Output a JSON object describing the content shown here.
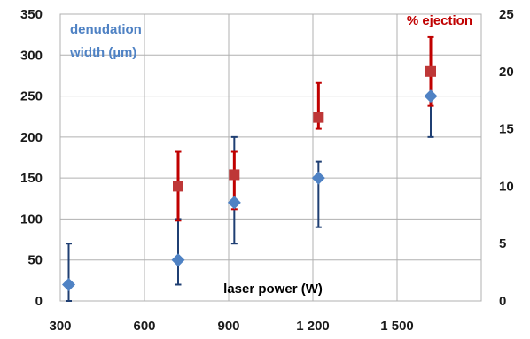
{
  "chart_data": {
    "type": "scatter",
    "xlabel": "laser power (W)",
    "x_ticks": [
      "300",
      "600",
      "900",
      "1 200",
      "1 500"
    ],
    "xlim": [
      300,
      1800
    ],
    "y_left": {
      "lim": [
        0,
        350
      ],
      "ticks": [
        "0",
        "50",
        "100",
        "150",
        "200",
        "250",
        "300",
        "350"
      ]
    },
    "y_right": {
      "lim": [
        0,
        25
      ],
      "ticks": [
        "0",
        "5",
        "10",
        "15",
        "20",
        "25"
      ]
    },
    "grid": true,
    "colors": {
      "denudation": "#4f82c4",
      "denudation_err": "#1f3f73",
      "ejection": "#be3737",
      "ejection_err": "#c00000",
      "grid": "#b0b0b0"
    },
    "series": [
      {
        "name": "denudation width (µm)",
        "label_lines": [
          "denudation",
          "width (µm)"
        ],
        "axis": "left",
        "marker": "diamond",
        "points": [
          {
            "x": 330,
            "y": 20,
            "err_low": 0,
            "err_high": 70
          },
          {
            "x": 720,
            "y": 50,
            "err_low": 20,
            "err_high": 100
          },
          {
            "x": 920,
            "y": 120,
            "err_low": 70,
            "err_high": 200
          },
          {
            "x": 1220,
            "y": 150,
            "err_low": 90,
            "err_high": 170
          },
          {
            "x": 1620,
            "y": 250,
            "err_low": 200,
            "err_high": 250
          }
        ]
      },
      {
        "name": "% ejection",
        "label_lines": [
          "% ejection"
        ],
        "axis": "right",
        "marker": "square",
        "points": [
          {
            "x": 720,
            "y": 10,
            "err_low": 7,
            "err_high": 13
          },
          {
            "x": 920,
            "y": 11,
            "err_low": 8,
            "err_high": 13
          },
          {
            "x": 1220,
            "y": 16,
            "err_low": 15,
            "err_high": 19
          },
          {
            "x": 1620,
            "y": 20,
            "err_low": 17,
            "err_high": 23
          }
        ]
      }
    ]
  }
}
